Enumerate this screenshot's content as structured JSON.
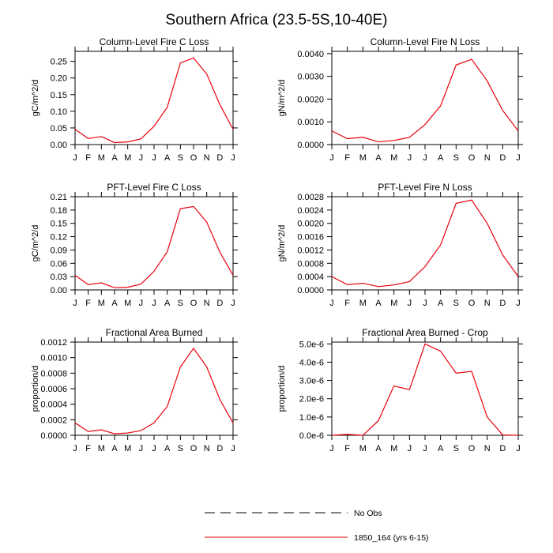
{
  "figure": {
    "title": "Southern Africa (23.5-5S,10-40E)",
    "colors": {
      "model_line": "#e8000b",
      "obs_line": "#000000",
      "axis": "#000000"
    }
  },
  "legend": {
    "entries": [
      {
        "label": "No Obs",
        "style": "dashed",
        "color": "#000000"
      },
      {
        "label": "1850_164 (yrs 6-15)",
        "style": "solid",
        "color": "#e8000b"
      }
    ]
  },
  "chart_data": [
    {
      "type": "line",
      "title": "Column-Level Fire C Loss",
      "xlabel": "",
      "ylabel": "gC/m^2/d",
      "categories": [
        "J",
        "F",
        "M",
        "A",
        "M",
        "J",
        "J",
        "A",
        "S",
        "O",
        "N",
        "D",
        "J"
      ],
      "ylim": [
        0,
        0.28
      ],
      "yticks": [
        "0.00",
        "0.05",
        "0.10",
        "0.15",
        "0.20",
        "0.25"
      ],
      "ytick_values": [
        0,
        0.05,
        0.1,
        0.15,
        0.2,
        0.25
      ],
      "series": [
        {
          "name": "1850_164 (yrs 6-15)",
          "values": [
            0.046,
            0.018,
            0.024,
            0.006,
            0.008,
            0.017,
            0.055,
            0.112,
            0.245,
            0.26,
            0.212,
            0.12,
            0.046
          ]
        }
      ]
    },
    {
      "type": "line",
      "title": "Column-Level Fire N Loss",
      "xlabel": "",
      "ylabel": "gN/m^2/d",
      "categories": [
        "J",
        "F",
        "M",
        "A",
        "M",
        "J",
        "J",
        "A",
        "S",
        "O",
        "N",
        "D",
        "J"
      ],
      "ylim": [
        0,
        0.0041
      ],
      "yticks": [
        "0.0000",
        "0.0010",
        "0.0020",
        "0.0030",
        "0.0040"
      ],
      "ytick_values": [
        0,
        0.001,
        0.002,
        0.003,
        0.004
      ],
      "series": [
        {
          "name": "1850_164 (yrs 6-15)",
          "values": [
            0.0006,
            0.00026,
            0.00032,
            0.00012,
            0.00018,
            0.00032,
            0.00088,
            0.0017,
            0.0035,
            0.00375,
            0.0028,
            0.0015,
            0.0006
          ]
        }
      ]
    },
    {
      "type": "line",
      "title": "PFT-Level Fire C Loss",
      "xlabel": "",
      "ylabel": "gC/m^2/d",
      "categories": [
        "J",
        "F",
        "M",
        "A",
        "M",
        "J",
        "J",
        "A",
        "S",
        "O",
        "N",
        "D",
        "J"
      ],
      "ylim": [
        0,
        0.21
      ],
      "yticks": [
        "0.00",
        "0.03",
        "0.06",
        "0.09",
        "0.12",
        "0.15",
        "0.18",
        "0.21"
      ],
      "ytick_values": [
        0,
        0.03,
        0.06,
        0.09,
        0.12,
        0.15,
        0.18,
        0.21
      ],
      "series": [
        {
          "name": "1850_164 (yrs 6-15)",
          "values": [
            0.033,
            0.012,
            0.016,
            0.005,
            0.006,
            0.013,
            0.042,
            0.086,
            0.183,
            0.188,
            0.153,
            0.085,
            0.033
          ]
        }
      ]
    },
    {
      "type": "line",
      "title": "PFT-Level Fire N Loss",
      "xlabel": "",
      "ylabel": "gN/m^2/d",
      "categories": [
        "J",
        "F",
        "M",
        "A",
        "M",
        "J",
        "J",
        "A",
        "S",
        "O",
        "N",
        "D",
        "J"
      ],
      "ylim": [
        0,
        0.0028
      ],
      "yticks": [
        "0.0000",
        "0.0004",
        "0.0008",
        "0.0012",
        "0.0016",
        "0.0020",
        "0.0024",
        "0.0028"
      ],
      "ytick_values": [
        0,
        0.0004,
        0.0008,
        0.0012,
        0.0016,
        0.002,
        0.0024,
        0.0028
      ],
      "series": [
        {
          "name": "1850_164 (yrs 6-15)",
          "values": [
            0.0004,
            0.00016,
            0.0002,
            0.0001,
            0.00015,
            0.00025,
            0.0007,
            0.00135,
            0.0026,
            0.0027,
            0.002,
            0.00105,
            0.0004
          ]
        }
      ]
    },
    {
      "type": "line",
      "title": "Fractional Area Burned",
      "xlabel": "",
      "ylabel": "proportion/d",
      "categories": [
        "J",
        "F",
        "M",
        "A",
        "M",
        "J",
        "J",
        "A",
        "S",
        "O",
        "N",
        "D",
        "J"
      ],
      "ylim": [
        0,
        0.0012
      ],
      "yticks": [
        "0.0000",
        "0.0002",
        "0.0004",
        "0.0006",
        "0.0008",
        "0.0010",
        "0.0012"
      ],
      "ytick_values": [
        0,
        0.0002,
        0.0004,
        0.0006,
        0.0008,
        0.001,
        0.0012
      ],
      "series": [
        {
          "name": "1850_164 (yrs 6-15)",
          "values": [
            0.00016,
            5e-05,
            7e-05,
            2e-05,
            3e-05,
            6e-05,
            0.00016,
            0.00037,
            0.00088,
            0.00112,
            0.00088,
            0.00046,
            0.00016
          ]
        }
      ]
    },
    {
      "type": "line",
      "title": "Fractional Area Burned - Crop",
      "xlabel": "",
      "ylabel": "proportion/d",
      "categories": [
        "J",
        "F",
        "M",
        "A",
        "M",
        "J",
        "J",
        "A",
        "S",
        "O",
        "N",
        "D",
        "J"
      ],
      "ylim": [
        0,
        5.1e-06
      ],
      "yticks": [
        "0.0e-6",
        "1.0e-6",
        "2.0e-6",
        "3.0e-6",
        "4.0e-6",
        "5.0e-6"
      ],
      "ytick_values": [
        0,
        1e-06,
        2e-06,
        3e-06,
        4e-06,
        5e-06
      ],
      "series": [
        {
          "name": "1850_164 (yrs 6-15)",
          "values": [
            0.0,
            5e-08,
            0.0,
            8e-07,
            2.7e-06,
            2.5e-06,
            5e-06,
            4.6e-06,
            3.4e-06,
            3.5e-06,
            1e-06,
            2e-08,
            0.0
          ]
        }
      ]
    }
  ]
}
